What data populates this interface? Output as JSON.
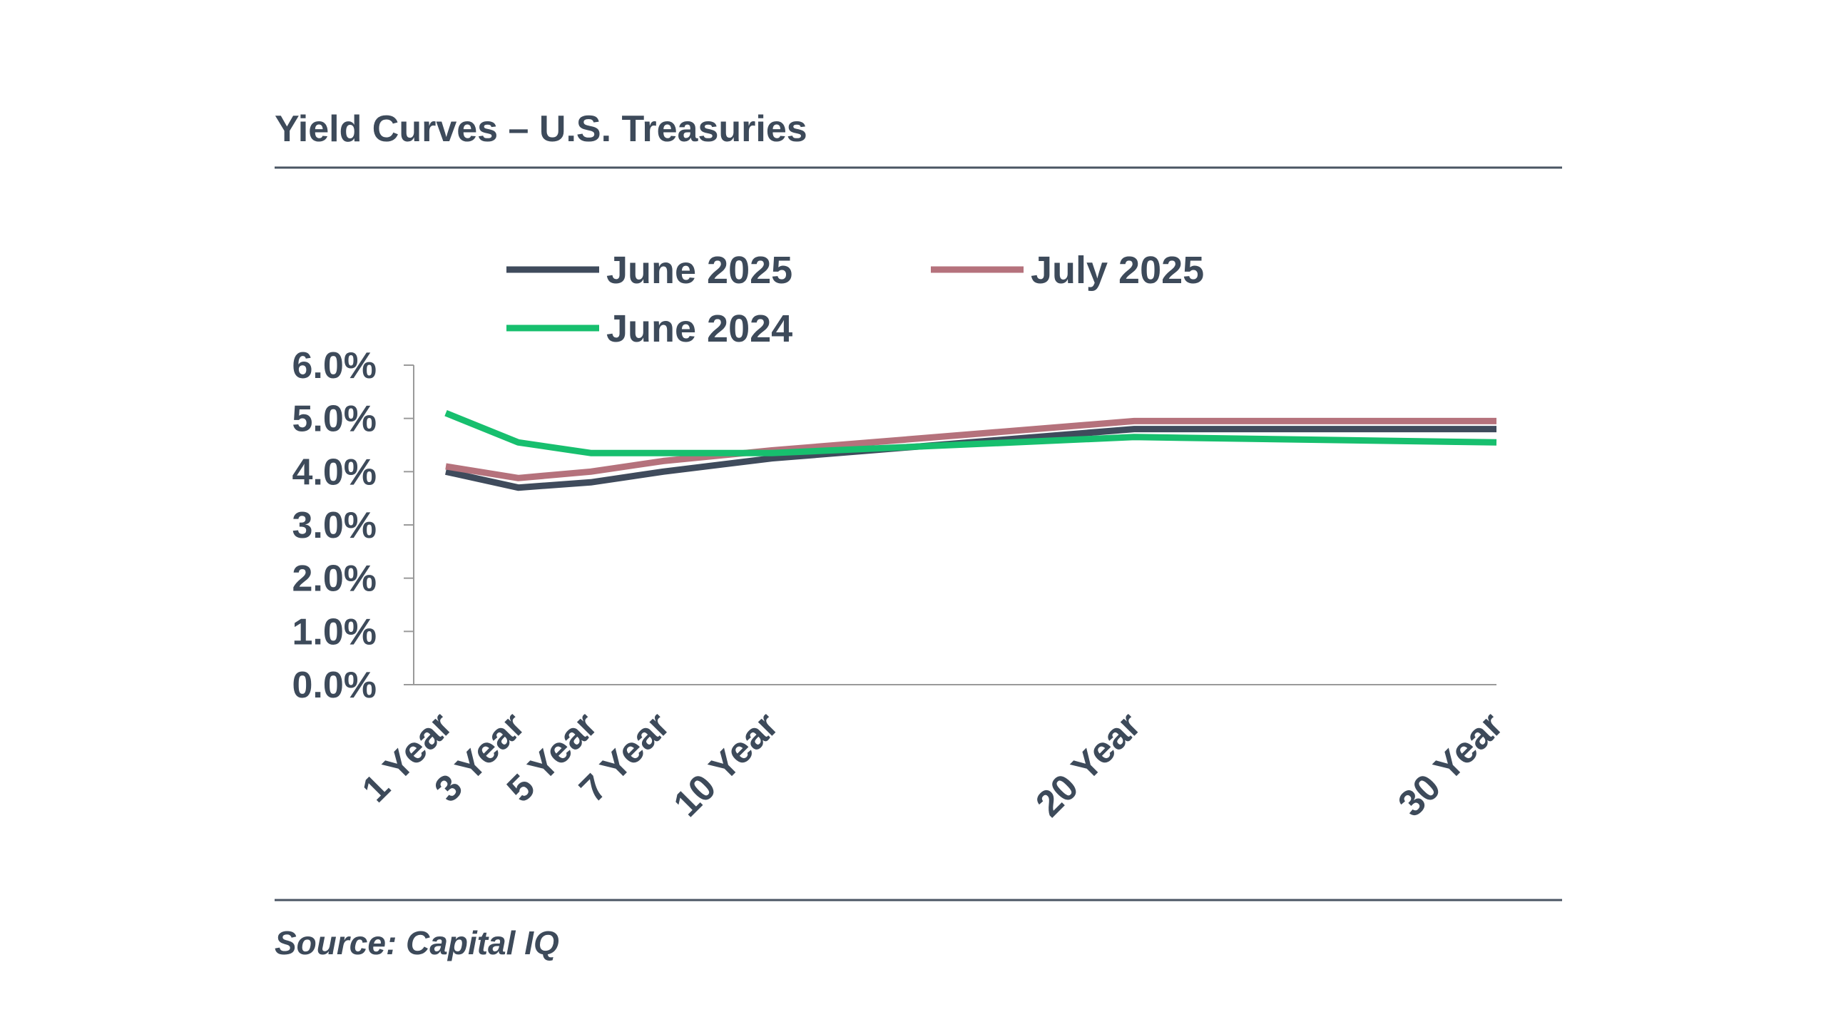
{
  "header": {
    "title": "Yield Curves – U.S. Treasuries"
  },
  "footer": {
    "source": "Source: Capital IQ"
  },
  "colors": {
    "text": "#3d4a5a",
    "rule": "#4a5563",
    "axis": "#9a9a9a"
  },
  "chart_data": {
    "type": "line",
    "title": "Yield Curves – U.S. Treasuries",
    "xlabel": "",
    "ylabel": "",
    "x": [
      1,
      3,
      5,
      7,
      10,
      20,
      30
    ],
    "categories": [
      "1 Year",
      "3 Year",
      "5 Year",
      "7 Year",
      "10 Year",
      "20 Year",
      "30 Year"
    ],
    "xlim": [
      0,
      30
    ],
    "ylim": [
      0,
      6
    ],
    "y_ticks": [
      "0.0%",
      "1.0%",
      "2.0%",
      "3.0%",
      "4.0%",
      "5.0%",
      "6.0%"
    ],
    "grid": false,
    "legend_position": "top",
    "series": [
      {
        "name": "June 2025",
        "color": "#3f4b5c",
        "values": [
          4.0,
          3.7,
          3.8,
          4.0,
          4.25,
          4.8,
          4.8
        ]
      },
      {
        "name": "July 2025",
        "color": "#b5727c",
        "values": [
          4.1,
          3.88,
          4.0,
          4.2,
          4.4,
          4.95,
          4.95
        ]
      },
      {
        "name": "June 2024",
        "color": "#17bf6e",
        "values": [
          5.1,
          4.55,
          4.35,
          4.35,
          4.35,
          4.65,
          4.55
        ]
      }
    ]
  }
}
